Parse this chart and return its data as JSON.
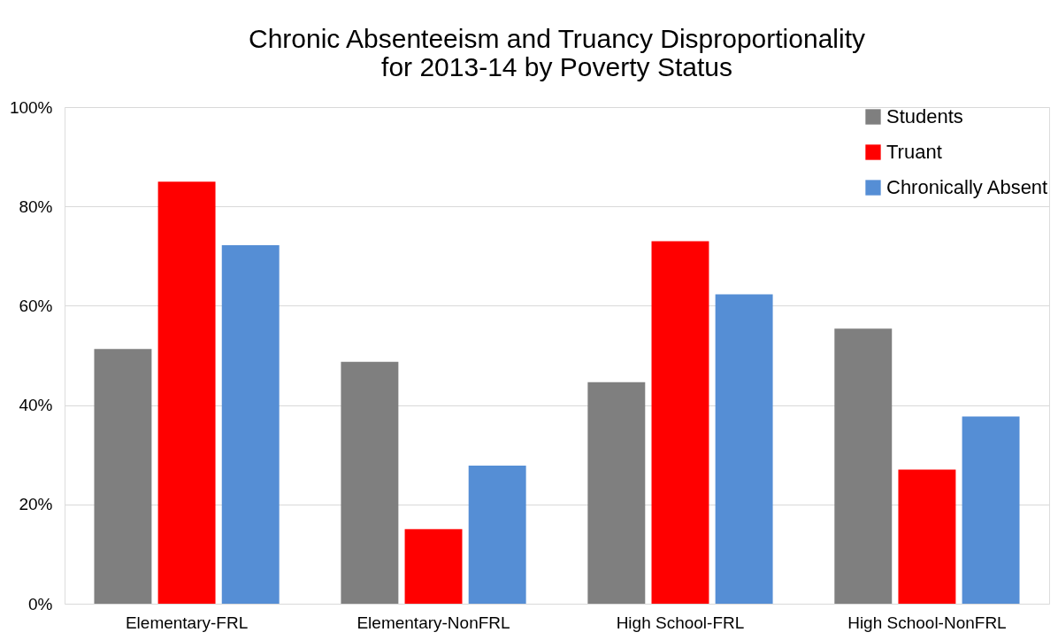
{
  "chart_data": {
    "type": "bar",
    "title": "Chronic Absenteeism and Truancy Disproportionality\nfor 2013-14 by Poverty Status",
    "categories": [
      "Elementary-FRL",
      "Elementary-NonFRL",
      "High School-FRL",
      "High School-NonFRL"
    ],
    "series": [
      {
        "name": "Students",
        "color": "#7f7f7f",
        "values": [
          51.3,
          48.7,
          44.6,
          55.4
        ]
      },
      {
        "name": "Truant",
        "color": "#ff0000",
        "values": [
          85,
          15,
          73,
          27
        ]
      },
      {
        "name": "Chronically Absent",
        "color": "#558ed5",
        "values": [
          72.2,
          27.8,
          62.3,
          37.7
        ]
      }
    ],
    "ylim": [
      0,
      100
    ],
    "yticks": [
      {
        "value": 0,
        "label": "0%"
      },
      {
        "value": 20,
        "label": "20%"
      },
      {
        "value": 40,
        "label": "40%"
      },
      {
        "value": 60,
        "label": "60%"
      },
      {
        "value": 80,
        "label": "80%"
      },
      {
        "value": 100,
        "label": "100%"
      }
    ],
    "grid": "y",
    "legend": "top right"
  }
}
